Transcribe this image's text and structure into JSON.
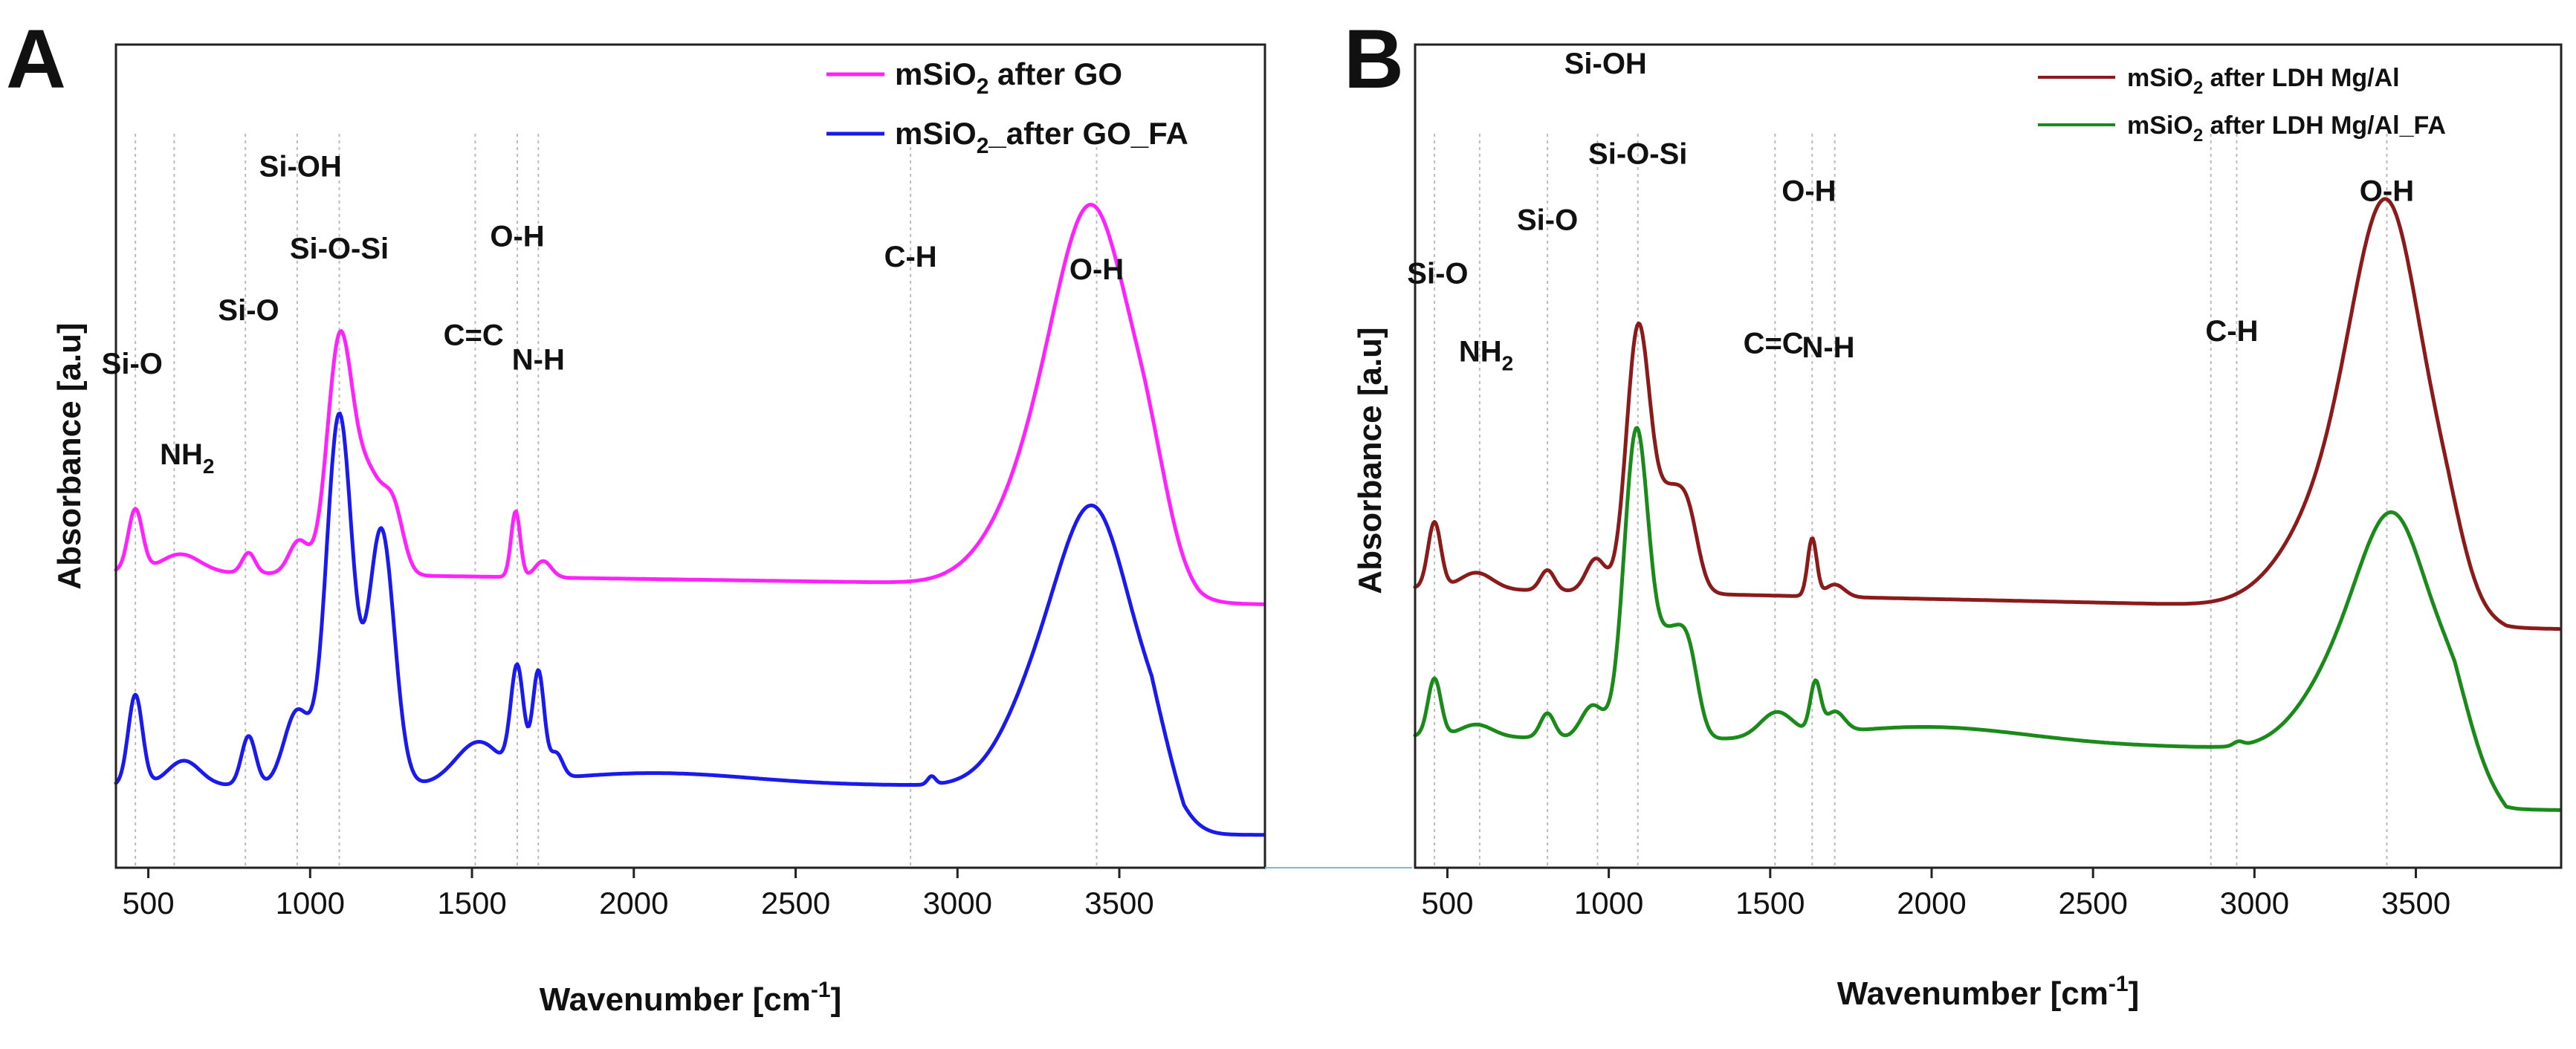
{
  "chart_data": [
    {
      "type": "line",
      "panel": "A",
      "xlabel": "Wavenumber [cm",
      "xlabel_sup": "-1",
      "xlabel_end": "]",
      "ylabel": "Absorbance [a.u]",
      "xlim": [
        400,
        3950
      ],
      "x_ticks": [
        500,
        1000,
        1500,
        2000,
        2500,
        3000,
        3500
      ],
      "x_tick_labels": [
        "500",
        "1000",
        "1500",
        "2000",
        "2500",
        "3000",
        "3500"
      ],
      "ylim": [
        0,
        1
      ],
      "legend_position": "top-right",
      "series": [
        {
          "name": "mSiO2 after GO",
          "legend_parts": [
            "mSiO",
            "2",
            " after GO"
          ],
          "color": "#ff22ff",
          "baseline": 0.34,
          "slope": 0.02,
          "peaks": [
            [
              460,
              0.075,
              22
            ],
            [
              600,
              0.022,
              60
            ],
            [
              810,
              0.025,
              20
            ],
            [
              965,
              0.04,
              30
            ],
            [
              1090,
              0.27,
              38
            ],
            [
              1180,
              0.12,
              50
            ],
            [
              1260,
              0.06,
              30
            ],
            [
              1635,
              0.08,
              14
            ],
            [
              1720,
              0.02,
              25
            ],
            [
              3260,
              0.12,
              140
            ],
            [
              3430,
              0.4,
              120
            ],
            [
              3600,
              0.06,
              60
            ]
          ],
          "drop": [
            3580,
            3750,
            0.02
          ]
        },
        {
          "name": "mSiO2_after GO_FA",
          "legend_parts": [
            "mSiO",
            "2",
            "_after GO_FA"
          ],
          "color": "#1a1aee",
          "baseline": 0.1,
          "slope": 0.0,
          "peaks": [
            [
              460,
              0.11,
              22
            ],
            [
              610,
              0.03,
              50
            ],
            [
              810,
              0.06,
              22
            ],
            [
              960,
              0.09,
              40
            ],
            [
              1090,
              0.45,
              40
            ],
            [
              1220,
              0.31,
              40
            ],
            [
              1520,
              0.05,
              70
            ],
            [
              1640,
              0.13,
              20
            ],
            [
              1705,
              0.13,
              18
            ],
            [
              1760,
              0.03,
              20
            ],
            [
              2060,
              0.015,
              300
            ],
            [
              2920,
              0.01,
              12
            ],
            [
              3250,
              0.1,
              110
            ],
            [
              3430,
              0.31,
              110
            ],
            [
              3620,
              0.04,
              70
            ]
          ],
          "drop": [
            3600,
            3700,
            0.06
          ]
        }
      ],
      "peak_annotations": [
        {
          "label": "Si-O",
          "x": 450,
          "y": 0.6
        },
        {
          "label": "NH",
          "sub": "2",
          "x": 620,
          "y": 0.49
        },
        {
          "label": "Si-O",
          "x": 810,
          "y": 0.665
        },
        {
          "label": "Si-OH",
          "x": 970,
          "y": 0.84
        },
        {
          "label": "Si-O-Si",
          "x": 1090,
          "y": 0.74
        },
        {
          "label": "C=C",
          "x": 1505,
          "y": 0.635
        },
        {
          "label": "O-H",
          "x": 1640,
          "y": 0.755
        },
        {
          "label": "N-H",
          "x": 1705,
          "y": 0.605
        },
        {
          "label": "C-H",
          "x": 2855,
          "y": 0.73
        },
        {
          "label": "O-H",
          "x": 3430,
          "y": 0.715
        }
      ],
      "guide_lines": [
        460,
        580,
        800,
        960,
        1090,
        1510,
        1640,
        1705,
        2855,
        3430
      ]
    },
    {
      "type": "line",
      "panel": "B",
      "xlabel": "Wavenumber [cm",
      "xlabel_sup": "-1",
      "xlabel_end": "]",
      "ylabel": "Absorbance [a.u]",
      "xlim": [
        400,
        3950
      ],
      "x_ticks": [
        500,
        1000,
        1500,
        2000,
        2500,
        3000,
        3500
      ],
      "x_tick_labels": [
        "500",
        "1000",
        "1500",
        "2000",
        "2500",
        "3000",
        "3500"
      ],
      "ylim": [
        0,
        1
      ],
      "legend_position": "top-right",
      "series": [
        {
          "name": "mSiO2 after LDH Mg/Al",
          "legend_parts": [
            "mSiO",
            "2",
            " after LDH Mg/Al"
          ],
          "color": "#8b1a1a",
          "baseline": 0.31,
          "slope": 0.03,
          "peaks": [
            [
              460,
              0.08,
              20
            ],
            [
              590,
              0.02,
              50
            ],
            [
              810,
              0.025,
              22
            ],
            [
              960,
              0.04,
              30
            ],
            [
              1090,
              0.31,
              36
            ],
            [
              1190,
              0.12,
              50
            ],
            [
              1250,
              0.05,
              30
            ],
            [
              1630,
              0.07,
              14
            ],
            [
              1700,
              0.015,
              30
            ],
            [
              3260,
              0.13,
              150
            ],
            [
              3420,
              0.42,
              110
            ],
            [
              3600,
              0.05,
              60
            ]
          ],
          "drop": [
            3600,
            3780,
            0.02
          ]
        },
        {
          "name": "mSiO2 after LDH Mg/Al_FA",
          "legend_parts": [
            "mSiO",
            "2",
            " after LDH Mg/Al_FA"
          ],
          "color": "#1a8a1a",
          "baseline": 0.14,
          "slope": 0.02,
          "peaks": [
            [
              460,
              0.07,
              20
            ],
            [
              590,
              0.015,
              50
            ],
            [
              810,
              0.03,
              22
            ],
            [
              950,
              0.04,
              35
            ],
            [
              1085,
              0.37,
              38
            ],
            [
              1190,
              0.12,
              45
            ],
            [
              1250,
              0.07,
              30
            ],
            [
              1520,
              0.03,
              50
            ],
            [
              1640,
              0.06,
              16
            ],
            [
              1700,
              0.025,
              30
            ],
            [
              2000,
              0.02,
              300
            ],
            [
              2950,
              0.005,
              15
            ],
            [
              3260,
              0.08,
              120
            ],
            [
              3440,
              0.26,
              110
            ],
            [
              3620,
              0.04,
              60
            ]
          ],
          "drop": [
            3620,
            3780,
            0.07
          ]
        }
      ],
      "peak_annotations": [
        {
          "label": "Si-O",
          "x": 470,
          "y": 0.71
        },
        {
          "label": "NH",
          "sub": "2",
          "x": 620,
          "y": 0.615
        },
        {
          "label": "Si-O",
          "x": 810,
          "y": 0.775
        },
        {
          "label": "Si-OH",
          "x": 990,
          "y": 0.965
        },
        {
          "label": "Si-O-Si",
          "x": 1090,
          "y": 0.855
        },
        {
          "label": "C=C",
          "x": 1510,
          "y": 0.625
        },
        {
          "label": "N-H",
          "x": 1680,
          "y": 0.62
        },
        {
          "label": "O-H",
          "x": 1620,
          "y": 0.81
        },
        {
          "label": "C-H",
          "x": 2930,
          "y": 0.64
        },
        {
          "label": "O-H",
          "x": 3410,
          "y": 0.81
        }
      ],
      "guide_lines": [
        460,
        600,
        810,
        965,
        1090,
        1515,
        1630,
        1700,
        2865,
        2945,
        3410
      ]
    }
  ]
}
